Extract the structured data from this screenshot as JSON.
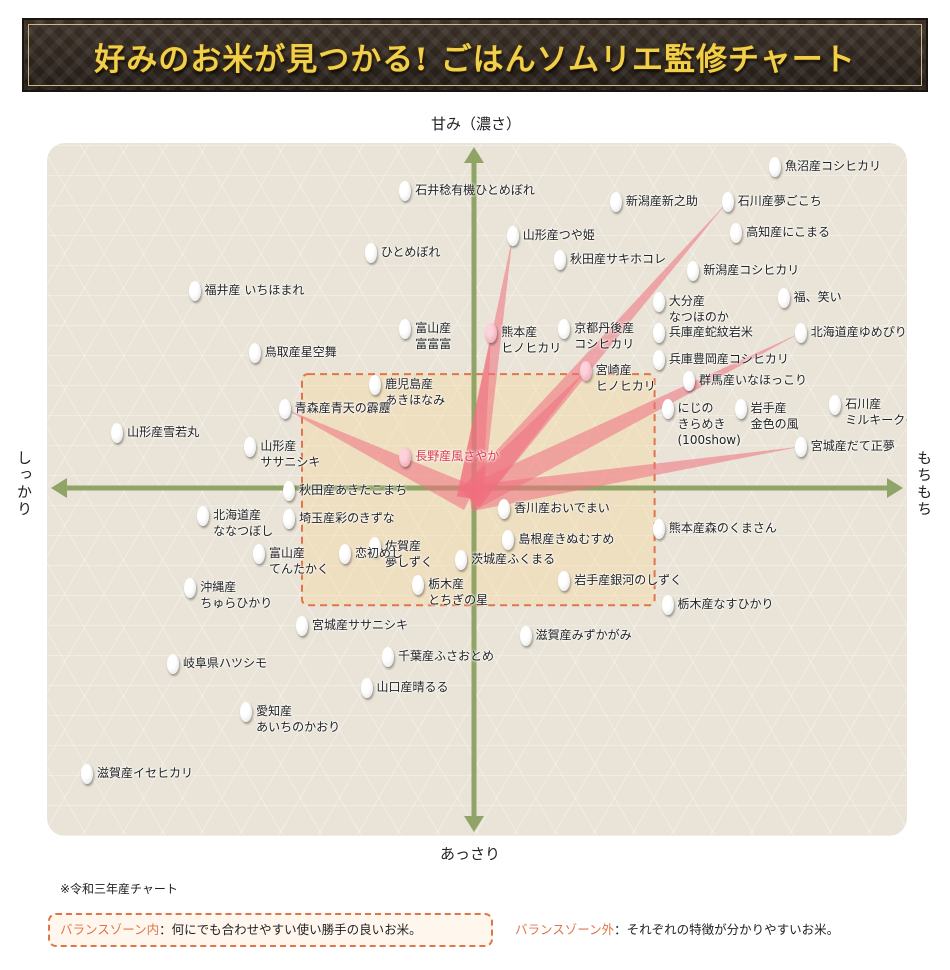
{
  "title": "好みのお米が見つかる! ごはんソムリエ監修チャート",
  "axes": {
    "top": "甘み（濃さ）",
    "bottom": "あっさり",
    "left": "しっかり",
    "right": "もちもち"
  },
  "colors": {
    "axis": "#8fa466",
    "ray": "#f07080",
    "zone_border": "#e0754a",
    "highlight_text": "#d9364a"
  },
  "note": "※令和三年産チャート",
  "legend": {
    "inside_label": "バランスゾーン内",
    "inside_text": "：何にでも合わせやすい使い勝手の良いお米。",
    "outside_label": "バランスゾーン外",
    "outside_text": "：それぞれの特徴が分かりやすいお米。"
  },
  "chart_data": {
    "type": "scatter",
    "title": "好みのお米が見つかる! ごはんソムリエ監修チャート",
    "xlabel_left": "しっかり",
    "xlabel_right": "もちもち",
    "ylabel_top": "甘み（濃さ）",
    "ylabel_bottom": "あっさり",
    "xlim": [
      -100,
      100
    ],
    "ylim": [
      -100,
      100
    ],
    "balance_zone": {
      "x": [
        -40,
        42
      ],
      "y": [
        -34,
        33
      ]
    },
    "ray_origin": [
      -1,
      -3
    ],
    "points": [
      {
        "name": "魚沼産コシヒカリ",
        "x": 70,
        "y": 93
      },
      {
        "name": "石井稔有機ひとめぼれ",
        "x": -16,
        "y": 86
      },
      {
        "name": "新潟産新之助",
        "x": 33,
        "y": 83
      },
      {
        "name": "石川産夢ごこち",
        "x": 59,
        "y": 83,
        "ray": true
      },
      {
        "name": "高知産にこまる",
        "x": 61,
        "y": 74
      },
      {
        "name": "山形産つや姫",
        "x": 9,
        "y": 73,
        "ray": true
      },
      {
        "name": "ひとめぼれ",
        "x": -24,
        "y": 68
      },
      {
        "name": "秋田産サキホコレ",
        "x": 20,
        "y": 66
      },
      {
        "name": "新潟産コシヒカリ",
        "x": 51,
        "y": 63
      },
      {
        "name": "福井産 いちほまれ",
        "x": -65,
        "y": 57
      },
      {
        "name": "大分産\nなつほのか",
        "x": 43,
        "y": 54
      },
      {
        "name": "福、笑い",
        "x": 72,
        "y": 55
      },
      {
        "name": "富山産\n富富富",
        "x": -16,
        "y": 46
      },
      {
        "name": "熊本産\nヒノヒカリ",
        "x": 4,
        "y": 45,
        "ray": true,
        "pink": true
      },
      {
        "name": "京都丹後産\nコシヒカリ",
        "x": 21,
        "y": 46
      },
      {
        "name": "兵庫産蛇紋岩米",
        "x": 43,
        "y": 45
      },
      {
        "name": "北海道産ゆめぴりか",
        "x": 76,
        "y": 45,
        "ray": true
      },
      {
        "name": "鳥取産星空舞",
        "x": -51,
        "y": 39
      },
      {
        "name": "兵庫豊岡産コシヒカリ",
        "x": 43,
        "y": 37
      },
      {
        "name": "宮崎産\nヒノヒカリ",
        "x": 26,
        "y": 34,
        "ray": true,
        "pink": true
      },
      {
        "name": "鹿児島産\nあきほなみ",
        "x": -23,
        "y": 30
      },
      {
        "name": "群馬産いなほっこり",
        "x": 50,
        "y": 31
      },
      {
        "name": "にじの\nきらめき\n(100show)",
        "x": 45,
        "y": 23
      },
      {
        "name": "岩手産\n金色の風",
        "x": 62,
        "y": 23
      },
      {
        "name": "石川産\nミルキークイーン",
        "x": 84,
        "y": 24
      },
      {
        "name": "青森産青天の霹靂",
        "x": -44,
        "y": 23,
        "ray": true
      },
      {
        "name": "山形産雪若丸",
        "x": -83,
        "y": 16
      },
      {
        "name": "山形産\nササニシキ",
        "x": -52,
        "y": 12
      },
      {
        "name": "宮城産だて正夢",
        "x": 76,
        "y": 12,
        "ray": true
      },
      {
        "name": "長野産風さやか",
        "x": -16,
        "y": 9,
        "pink": true,
        "red": true
      },
      {
        "name": "秋田産あきたこまち",
        "x": -43,
        "y": -1
      },
      {
        "name": "北海道産\nななつぼし",
        "x": -63,
        "y": -8
      },
      {
        "name": "埼玉産彩のきずな",
        "x": -43,
        "y": -9
      },
      {
        "name": "香川産おいでまい",
        "x": 7,
        "y": -6
      },
      {
        "name": "熊本産森のくまさん",
        "x": 43,
        "y": -12
      },
      {
        "name": "島根産きぬむすめ",
        "x": 8,
        "y": -15
      },
      {
        "name": "富山産\nてんたかく",
        "x": -50,
        "y": -19
      },
      {
        "name": "佐賀産\n夢しずく",
        "x": -23,
        "y": -17
      },
      {
        "name": "恋初めし",
        "x": -30,
        "y": -19
      },
      {
        "name": "茨城産ふくまる",
        "x": -3,
        "y": -21
      },
      {
        "name": "栃木産\nとちぎの星",
        "x": -13,
        "y": -28
      },
      {
        "name": "岩手産銀河のしずく",
        "x": 21,
        "y": -27
      },
      {
        "name": "沖縄産\nちゅらひかり",
        "x": -66,
        "y": -29
      },
      {
        "name": "栃木産なすひかり",
        "x": 45,
        "y": -34
      },
      {
        "name": "宮城産ササニシキ",
        "x": -40,
        "y": -40
      },
      {
        "name": "滋賀産みずかがみ",
        "x": 12,
        "y": -43
      },
      {
        "name": "千葉産ふさおとめ",
        "x": -20,
        "y": -49
      },
      {
        "name": "岐阜県ハツシモ",
        "x": -70,
        "y": -51
      },
      {
        "name": "山口産晴るる",
        "x": -25,
        "y": -58
      },
      {
        "name": "愛知産\nあいちのかおり",
        "x": -53,
        "y": -65
      },
      {
        "name": "滋賀産イセヒカリ",
        "x": -90,
        "y": -83
      }
    ]
  }
}
